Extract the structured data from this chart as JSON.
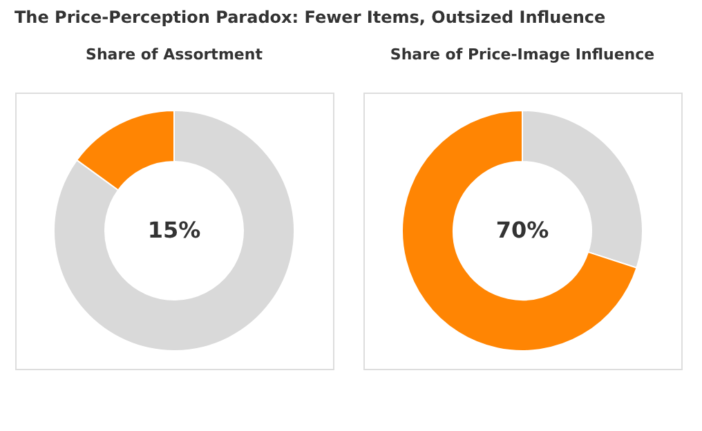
{
  "chart_data": [
    {
      "type": "donut",
      "title": "The Price-Perception Paradox: Fewer Items, Outsized Influence",
      "subtitle": "Share of Assortment",
      "categories": [
        null,
        null
      ],
      "values": [
        85,
        15
      ],
      "colors": [
        "#d9d9d9",
        "#ff8503"
      ],
      "annotations": [
        "15%"
      ]
    },
    {
      "type": "donut",
      "title": "Share of Price-Image Influence",
      "categories": [
        null,
        null
      ],
      "values": [
        30,
        70
      ],
      "colors": [
        "#d9d9d9",
        "#ff8503"
      ],
      "annotations": [
        "70%"
      ]
    }
  ]
}
